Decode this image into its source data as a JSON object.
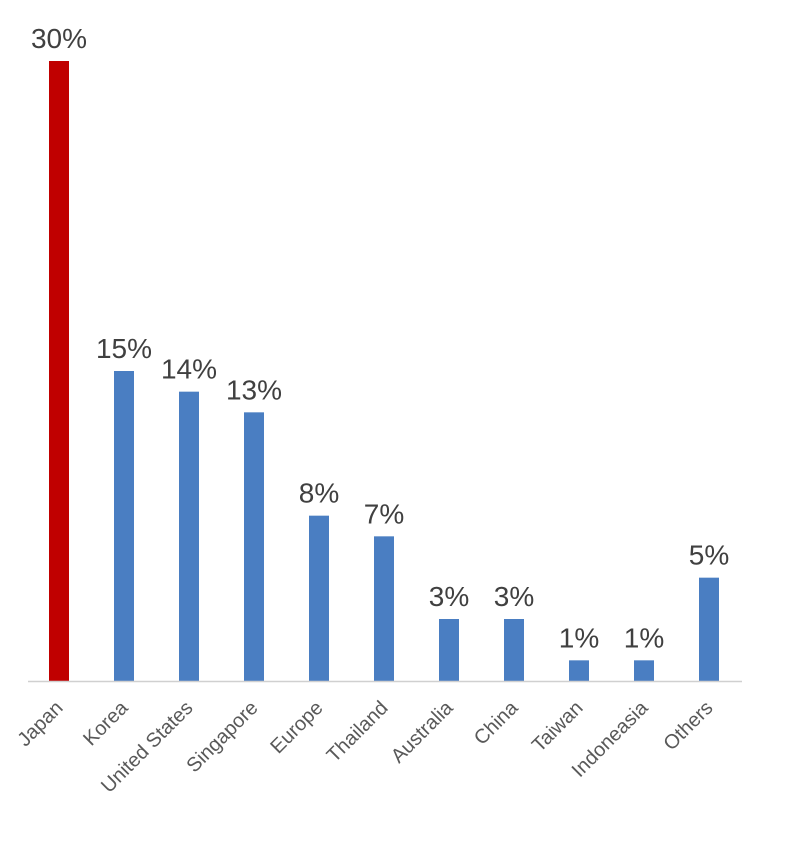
{
  "chart_data": {
    "type": "bar",
    "title": "",
    "xlabel": "",
    "ylabel": "",
    "categories": [
      "Japan",
      "Korea",
      "United States",
      "Singapore",
      "Europe",
      "Thailand",
      "Australia",
      "China",
      "Taiwan",
      "Indoneasia",
      "Others"
    ],
    "values": [
      30,
      15,
      14,
      13,
      8,
      7,
      3,
      3,
      1,
      1,
      5
    ],
    "labels": [
      "30%",
      "15%",
      "14%",
      "13%",
      "8%",
      "7%",
      "3%",
      "3%",
      "1%",
      "1%",
      "5%"
    ],
    "highlight_index": 0,
    "colors": {
      "highlight": "#C00000",
      "default": "#4A7EC2",
      "axis": "#D0D0D0"
    },
    "ylim": [
      0,
      30
    ],
    "grid": false,
    "legend": "none"
  }
}
